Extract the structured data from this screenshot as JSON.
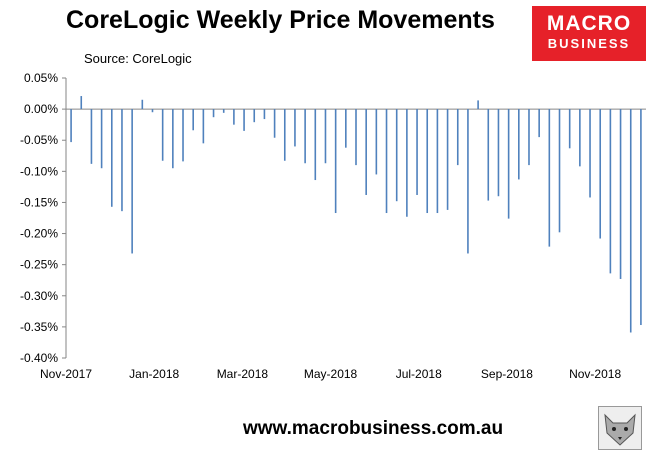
{
  "title": "CoreLogic Weekly Price Movements",
  "subtitle": "Source: CoreLogic",
  "logo": {
    "line1": "MACRO",
    "line2": "BUSINESS",
    "color": "#e62129"
  },
  "footer": "www.macrobusiness.com.au",
  "icons": {
    "mascot": "fox-icon"
  },
  "chart_data": {
    "type": "bar",
    "title": "CoreLogic Weekly Price Movements",
    "xlabel": "",
    "ylabel": "",
    "ylim": [
      -0.4,
      0.05
    ],
    "y_ticks": [
      "0.05%",
      "0.00%",
      "-0.05%",
      "-0.10%",
      "-0.15%",
      "-0.20%",
      "-0.25%",
      "-0.30%",
      "-0.35%",
      "-0.40%"
    ],
    "x_tick_labels": [
      "Nov-2017",
      "Jan-2018",
      "Mar-2018",
      "May-2018",
      "Jul-2018",
      "Sep-2018",
      "Nov-2018"
    ],
    "grid": false,
    "legend": "none",
    "bar_color": "#4f81bd",
    "values": [
      -0.053,
      0.021,
      -0.088,
      -0.095,
      -0.157,
      -0.164,
      -0.232,
      0.015,
      -0.005,
      -0.083,
      -0.095,
      -0.084,
      -0.034,
      -0.055,
      -0.013,
      -0.006,
      -0.025,
      -0.035,
      -0.021,
      -0.016,
      -0.046,
      -0.083,
      -0.06,
      -0.087,
      -0.114,
      -0.087,
      -0.167,
      -0.062,
      -0.09,
      -0.138,
      -0.105,
      -0.167,
      -0.148,
      -0.173,
      -0.138,
      -0.167,
      -0.167,
      -0.162,
      -0.09,
      -0.232,
      0.014,
      -0.147,
      -0.14,
      -0.176,
      -0.113,
      -0.09,
      -0.045,
      -0.221,
      -0.198,
      -0.063,
      -0.092,
      -0.142,
      -0.208,
      -0.264,
      -0.273,
      -0.359,
      -0.347
    ]
  }
}
